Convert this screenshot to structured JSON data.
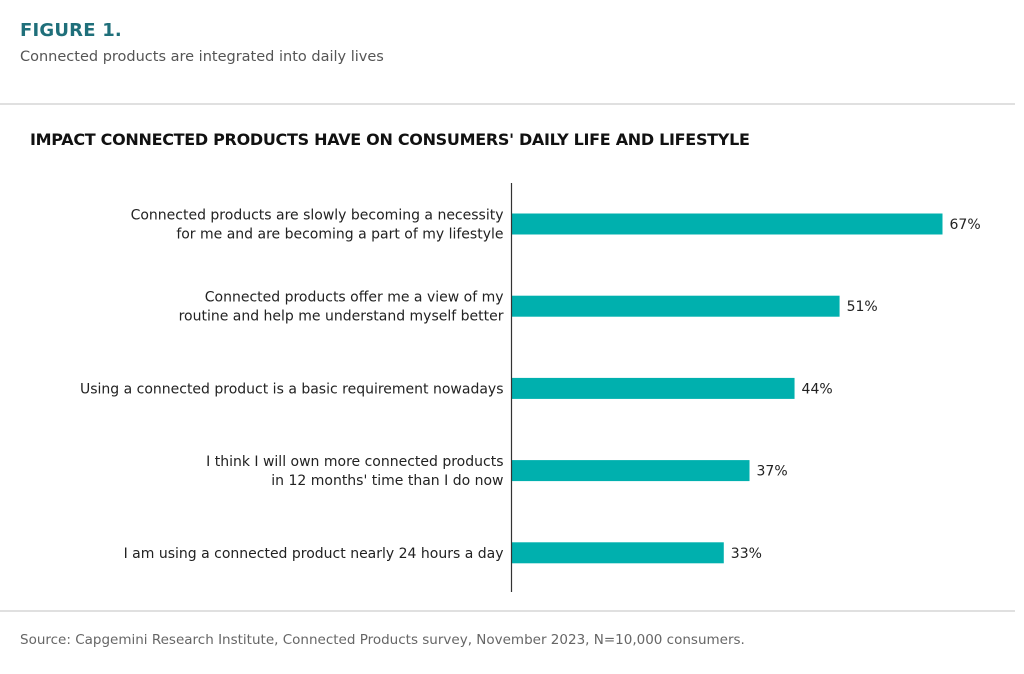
{
  "header": {
    "figure_label": "FIGURE 1.",
    "subtitle": "Connected products are integrated into daily lives"
  },
  "footer": {
    "source": "Source: Capgemini Research Institute, Connected Products survey, November 2023, N=10,000 consumers."
  },
  "colors": {
    "bar": "#00b0ae",
    "figure_label": "#1f6f7a"
  },
  "chart_data": {
    "type": "bar",
    "orientation": "horizontal",
    "title": "IMPACT CONNECTED PRODUCTS HAVE ON CONSUMERS' DAILY LIFE AND LIFESTYLE",
    "xlabel": "",
    "ylabel": "",
    "unit": "%",
    "xlim": [
      0,
      67
    ],
    "grid": false,
    "categories": [
      [
        "Connected products are slowly becoming a necessity",
        "for me and are becoming a part of my lifestyle"
      ],
      [
        "Connected products offer me a view of my",
        "routine and help me understand myself better"
      ],
      [
        "Using a connected product is a basic requirement nowadays"
      ],
      [
        "I think I will own more connected products",
        "in 12 months' time than I do now"
      ],
      [
        "I am using a connected product nearly 24 hours a day"
      ]
    ],
    "values": [
      67,
      51,
      44,
      37,
      33
    ],
    "data_labels": [
      "67%",
      "51%",
      "44%",
      "37%",
      "33%"
    ]
  }
}
